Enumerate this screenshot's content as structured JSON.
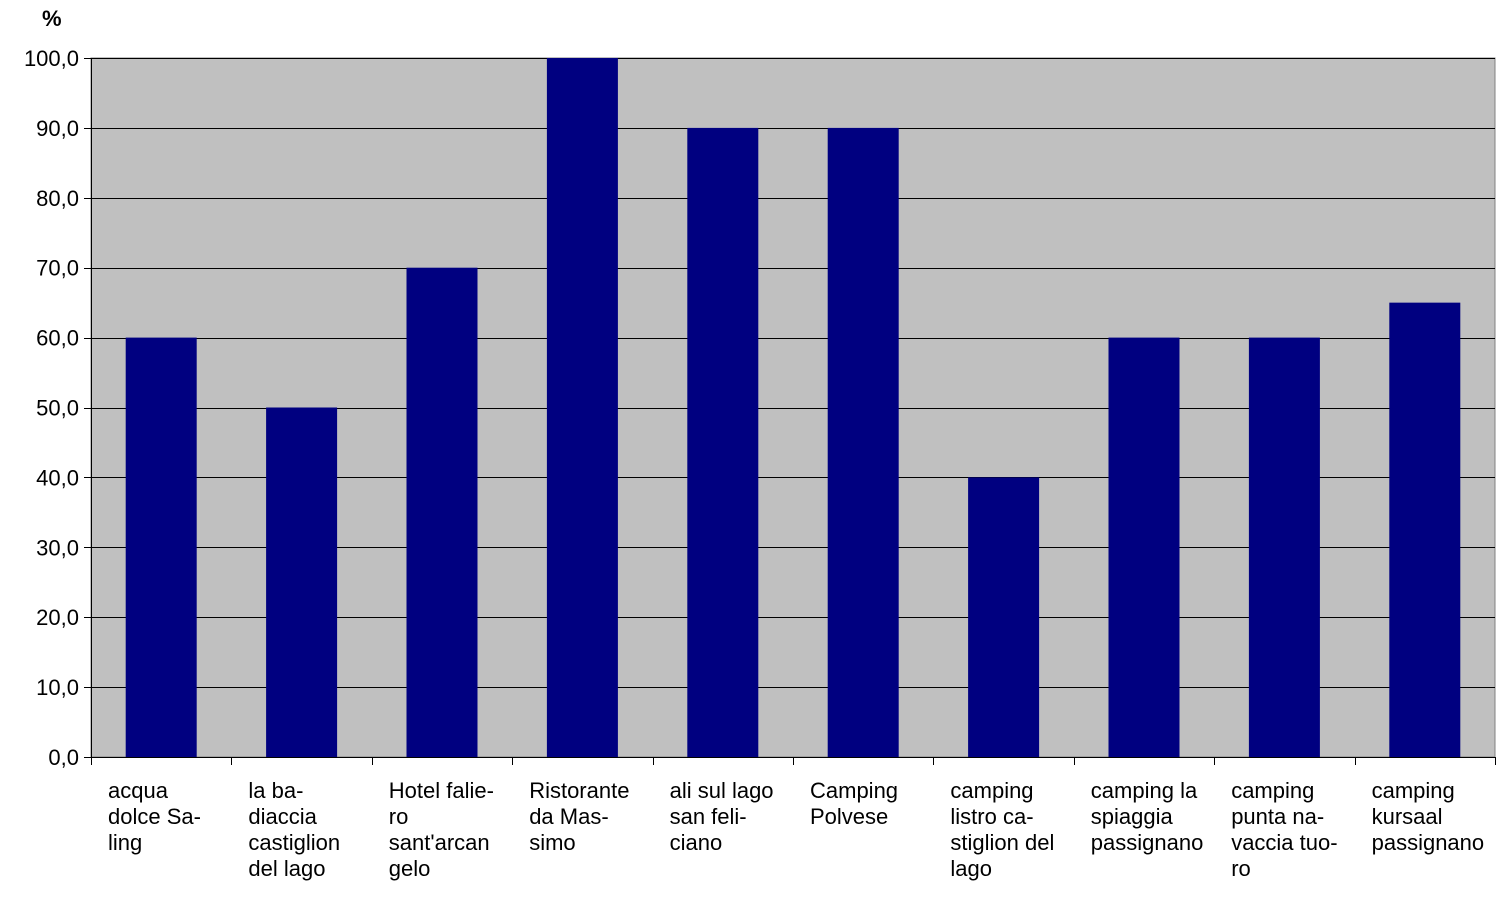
{
  "chart_data": {
    "type": "bar",
    "title": "",
    "xlabel": "",
    "ylabel": "%",
    "ylim": [
      0,
      100
    ],
    "yticks": [
      "0,0",
      "10,0",
      "20,0",
      "30,0",
      "40,0",
      "50,0",
      "60,0",
      "70,0",
      "80,0",
      "90,0",
      "100,0"
    ],
    "grid": true,
    "legend": "none",
    "categories": [
      "acqua\ndolce Sa-\nling",
      "la ba-\ndiaccia\ncastiglion\ndel lago",
      "Hotel falie-\nro\nsant'arcan\ngelo",
      "Ristorante\nda Mas-\nsimo",
      "ali sul lago\nsan feli-\nciano",
      "Camping\nPolvese",
      "camping\nlistro ca-\nstiglion del\nlago",
      "camping la\nspiaggia\npassignano",
      "camping\npunta na-\nvaccia tuo-\nro",
      "camping\nkursaal\npassignano"
    ],
    "values": [
      60,
      50,
      70,
      100,
      90,
      90,
      40,
      60,
      60,
      65
    ],
    "colors": {
      "bar": "#000080",
      "plot_background": "#c0c0c0",
      "gridline": "#000000",
      "axis": "#000000",
      "text": "#000000"
    }
  }
}
